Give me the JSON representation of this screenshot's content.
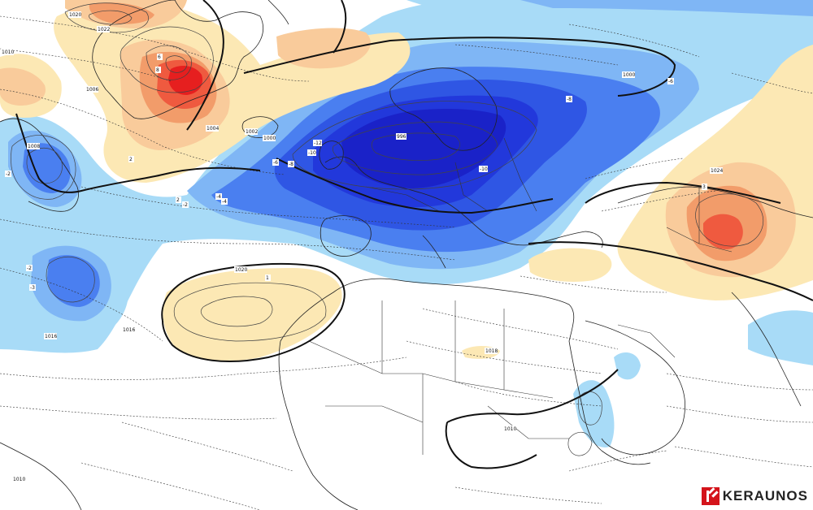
{
  "brand": {
    "name": "KERAUNOS",
    "accent": "#d4141b"
  },
  "palette": {
    "neg_12": "#1a22c8",
    "neg_10": "#2238db",
    "neg_8": "#2f56e4",
    "neg_6": "#4a7ff0",
    "neg_4": "#7fb6f5",
    "neg_2": "#a8dbf7",
    "pos_1": "#fce8b4",
    "pos_2": "#f9cb9b",
    "pos_4": "#f29c6a",
    "pos_6": "#ef5a3f",
    "pos_8": "#e61f1f"
  },
  "labels": {
    "p1020a": "1020",
    "p1022": "1022",
    "p1010a": "1010",
    "p1006": "1006",
    "p1004": "1004",
    "p1002": "1002",
    "p1000a": "1000",
    "p1008": "1008",
    "p996": "996",
    "p1000b": "1000",
    "p1024": "1024",
    "p1020b": "1020",
    "p1016a": "1016",
    "p1016b": "1016",
    "p1018": "1018",
    "p1010b": "1010",
    "p1010c": "1010",
    "a_neg4": "-4",
    "a_neg6": "-6",
    "a_neg10": "-10",
    "a_neg12": "-12",
    "a_neg10b": "-10",
    "a_neg8": "-8",
    "a_neg8b": "-8",
    "a_neg6b": "-6",
    "a_neg2a": "-2",
    "a_neg2b": "-2",
    "a_neg2c": "-2",
    "a_neg4b": "-4",
    "a_neg3": "-3",
    "a_pos2a": "2",
    "a_pos2b": "2",
    "a_pos6": "6",
    "a_pos8": "8",
    "a_pos3": "3",
    "a_pos1": "1"
  }
}
